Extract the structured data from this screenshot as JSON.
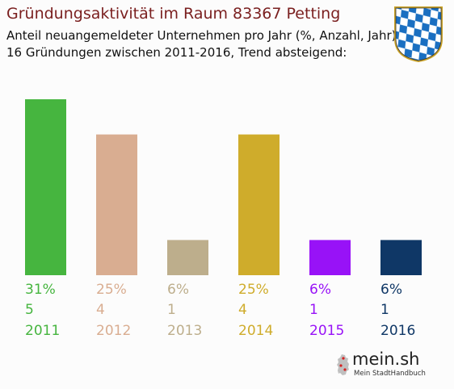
{
  "header": {
    "title": "Gründungsaktivität im Raum 83367 Petting",
    "subtitle_line1": "Anteil neuangemeldeter Unternehmen pro Jahr (%, Anzahl, Jahr)",
    "subtitle_line2": "16 Gründungen zwischen 2011-2016, Trend absteigend:"
  },
  "crest": {
    "icon": "bavaria-crest-icon",
    "colors": [
      "#1a6fc1",
      "#ffffff",
      "#c9a227"
    ]
  },
  "logo": {
    "name": "mein.sh",
    "tagline": "Mein StadtHandbuch",
    "icon": "germany-map-icon"
  },
  "chart_data": {
    "type": "bar",
    "title": "Gründungsaktivität im Raum 83367 Petting",
    "categories": [
      "2011",
      "2012",
      "2013",
      "2014",
      "2015",
      "2016"
    ],
    "values": [
      5,
      4,
      1,
      4,
      1,
      1
    ],
    "percent_labels": [
      "31%",
      "25%",
      "6%",
      "25%",
      "6%",
      "6%"
    ],
    "count_labels": [
      "5",
      "4",
      "1",
      "4",
      "1",
      "1"
    ],
    "colors": [
      "#46b53f",
      "#d9ad91",
      "#bdae8c",
      "#cfac2b",
      "#9812f7",
      "#0f3766"
    ],
    "ylim": [
      0,
      5
    ],
    "grid": false,
    "legend": "none"
  }
}
